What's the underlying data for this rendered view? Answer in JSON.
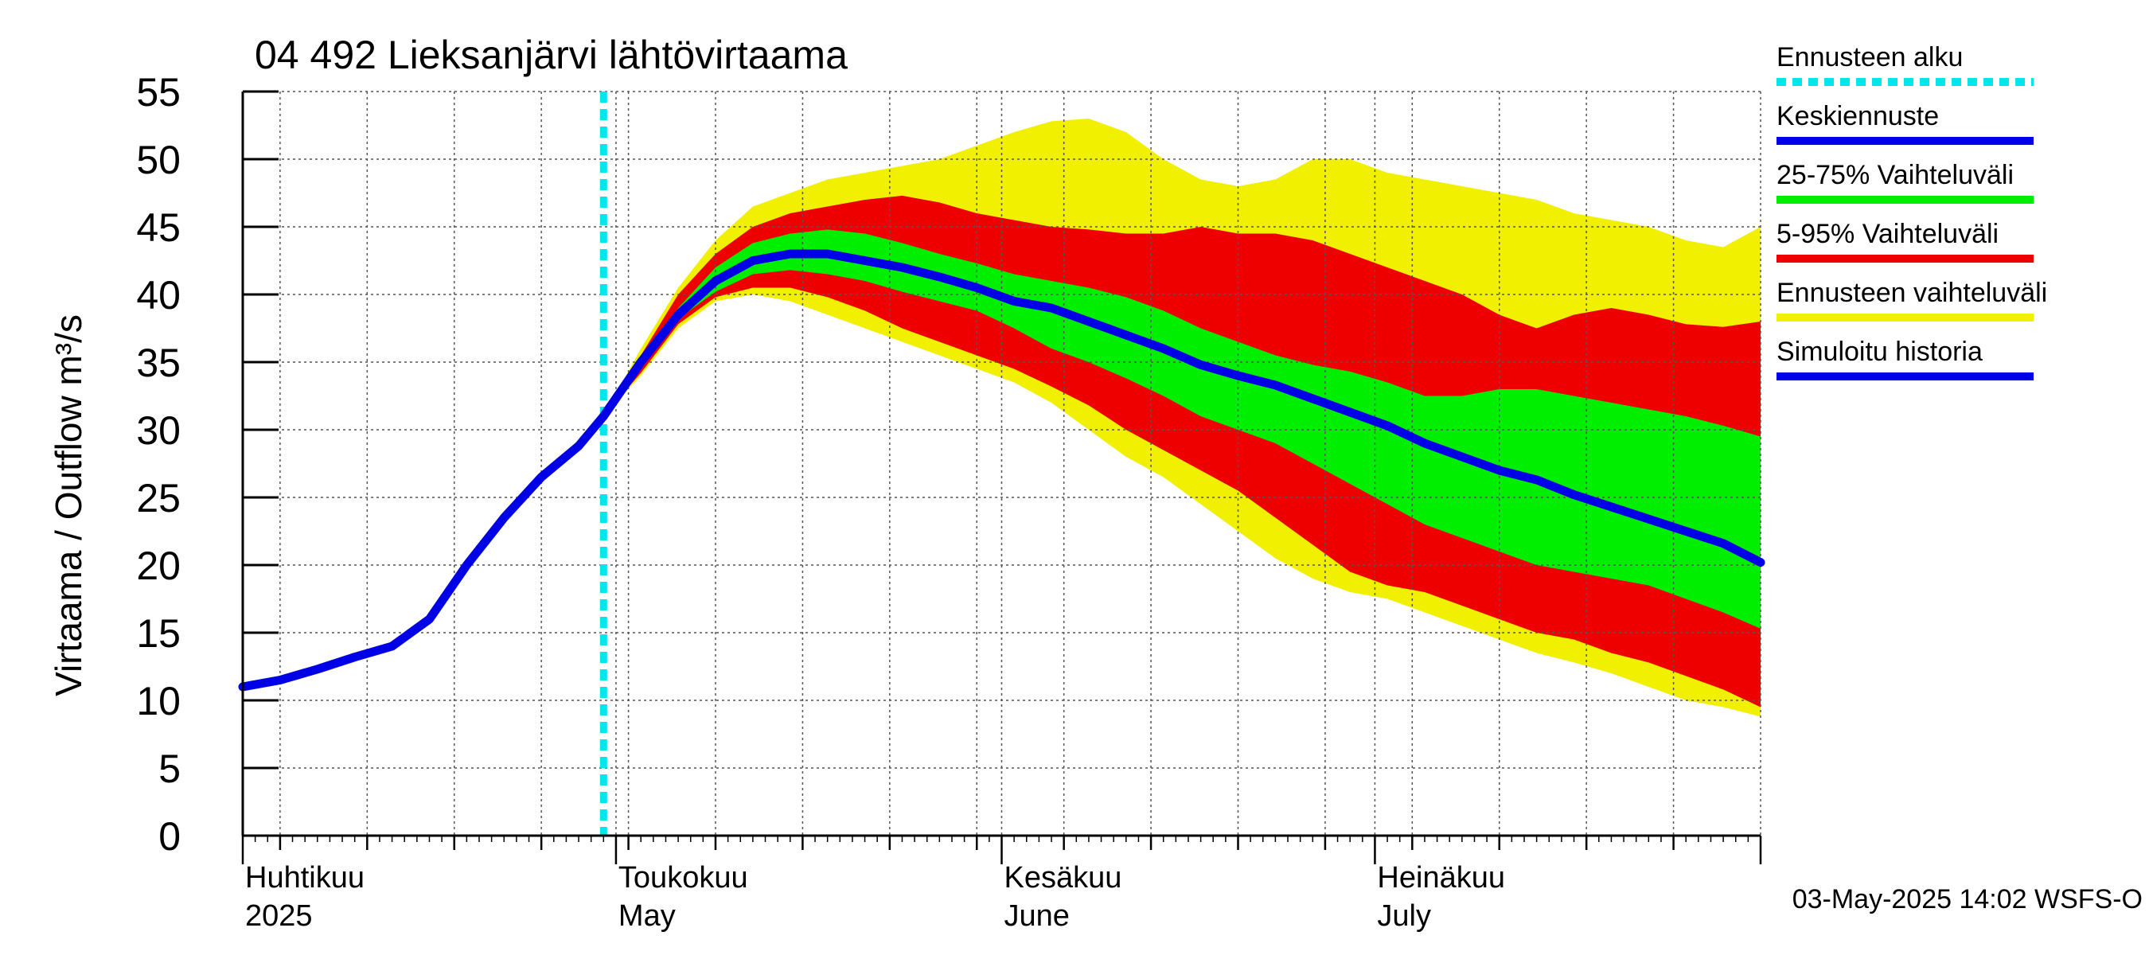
{
  "chart_data": {
    "type": "area",
    "title": "04 492 Lieksanjärvi lähtövirtaama",
    "ylabel": "Virtaama / Outflow    m³/s",
    "ylim": [
      0,
      55
    ],
    "yticks": [
      0,
      5,
      10,
      15,
      20,
      25,
      30,
      35,
      40,
      45,
      50,
      55
    ],
    "xlim": [
      "2025-04-01",
      "2025-08-01"
    ],
    "x_axis_labels": [
      {
        "date": "2025-04-01",
        "line1": "Huhtikuu",
        "line2": "2025"
      },
      {
        "date": "2025-05-01",
        "line1": "Toukokuu",
        "line2": "May"
      },
      {
        "date": "2025-06-01",
        "line1": "Kesäkuu",
        "line2": "June"
      },
      {
        "date": "2025-07-01",
        "line1": "Heinäkuu",
        "line2": "July"
      }
    ],
    "forecast_start": "2025-04-30",
    "footer": "03-May-2025 14:02 WSFS-O",
    "grid": true,
    "legend_position": "right",
    "legend": [
      {
        "key": "forecast_start",
        "label": "Ennusteen alku",
        "color": "#00e5ee",
        "style": "dotted"
      },
      {
        "key": "median",
        "label": "Keskiennuste",
        "color": "#0000e6",
        "style": "solid"
      },
      {
        "key": "p25_75",
        "label": "25-75% Vaihteluväli",
        "color": "#00ee00",
        "style": "solid"
      },
      {
        "key": "p5_95",
        "label": "5-95% Vaihteluväli",
        "color": "#ee0000",
        "style": "solid"
      },
      {
        "key": "range",
        "label": "Ennusteen vaihteluväli",
        "color": "#f0f000",
        "style": "solid"
      },
      {
        "key": "history",
        "label": "Simuloitu historia",
        "color": "#0000e6",
        "style": "solid"
      }
    ],
    "series": [
      {
        "key": "history",
        "color": "#0000e6",
        "x": [
          "2025-04-01",
          "2025-04-04",
          "2025-04-07",
          "2025-04-10",
          "2025-04-13",
          "2025-04-16",
          "2025-04-19",
          "2025-04-22",
          "2025-04-25",
          "2025-04-28",
          "2025-04-30"
        ],
        "values": [
          11.0,
          11.5,
          12.3,
          13.2,
          14.0,
          16.0,
          20.0,
          23.5,
          26.5,
          28.8,
          31.0
        ]
      },
      {
        "key": "median",
        "color": "#0000e6",
        "x": [
          "2025-04-30",
          "2025-05-03",
          "2025-05-06",
          "2025-05-09",
          "2025-05-12",
          "2025-05-15",
          "2025-05-18",
          "2025-05-21",
          "2025-05-24",
          "2025-05-27",
          "2025-05-30",
          "2025-06-02",
          "2025-06-05",
          "2025-06-08",
          "2025-06-11",
          "2025-06-14",
          "2025-06-17",
          "2025-06-20",
          "2025-06-23",
          "2025-06-26",
          "2025-06-29",
          "2025-07-02",
          "2025-07-05",
          "2025-07-08",
          "2025-07-11",
          "2025-07-14",
          "2025-07-17",
          "2025-07-20",
          "2025-07-23",
          "2025-07-26",
          "2025-07-29",
          "2025-08-01"
        ],
        "values": [
          31.0,
          35.0,
          38.5,
          41.0,
          42.5,
          43.0,
          43.0,
          42.5,
          42.0,
          41.3,
          40.5,
          39.5,
          39.0,
          38.0,
          37.0,
          36.0,
          34.8,
          34.0,
          33.3,
          32.3,
          31.3,
          30.3,
          29.0,
          28.0,
          27.0,
          26.3,
          25.2,
          24.3,
          23.4,
          22.5,
          21.6,
          20.2
        ]
      }
    ],
    "bands": [
      {
        "key": "range",
        "color": "#f0f000",
        "x": [
          "2025-04-30",
          "2025-05-03",
          "2025-05-06",
          "2025-05-09",
          "2025-05-12",
          "2025-05-15",
          "2025-05-18",
          "2025-05-21",
          "2025-05-24",
          "2025-05-27",
          "2025-05-30",
          "2025-06-02",
          "2025-06-05",
          "2025-06-08",
          "2025-06-11",
          "2025-06-14",
          "2025-06-17",
          "2025-06-20",
          "2025-06-23",
          "2025-06-26",
          "2025-06-29",
          "2025-07-02",
          "2025-07-05",
          "2025-07-08",
          "2025-07-11",
          "2025-07-14",
          "2025-07-17",
          "2025-07-20",
          "2025-07-23",
          "2025-07-26",
          "2025-07-29",
          "2025-08-01"
        ],
        "upper": [
          31.0,
          36.0,
          40.5,
          44.0,
          46.5,
          47.5,
          48.5,
          49.0,
          49.5,
          50.0,
          51.0,
          52.0,
          52.8,
          53.0,
          52.0,
          50.0,
          48.5,
          48.0,
          48.5,
          50.0,
          50.0,
          49.0,
          48.5,
          48.0,
          47.5,
          47.0,
          46.0,
          45.5,
          45.0,
          44.0,
          43.5,
          45.0
        ],
        "lower": [
          31.0,
          34.0,
          37.5,
          39.5,
          40.0,
          39.5,
          38.5,
          37.5,
          36.5,
          35.5,
          34.5,
          33.5,
          32.0,
          30.0,
          28.0,
          26.5,
          24.5,
          22.5,
          20.5,
          19.0,
          18.0,
          17.5,
          16.5,
          15.5,
          14.5,
          13.5,
          12.8,
          12.0,
          11.0,
          10.0,
          9.5,
          8.8
        ]
      },
      {
        "key": "p5_95",
        "color": "#ee0000",
        "x": [
          "2025-04-30",
          "2025-05-03",
          "2025-05-06",
          "2025-05-09",
          "2025-05-12",
          "2025-05-15",
          "2025-05-18",
          "2025-05-21",
          "2025-05-24",
          "2025-05-27",
          "2025-05-30",
          "2025-06-02",
          "2025-06-05",
          "2025-06-08",
          "2025-06-11",
          "2025-06-14",
          "2025-06-17",
          "2025-06-20",
          "2025-06-23",
          "2025-06-26",
          "2025-06-29",
          "2025-07-02",
          "2025-07-05",
          "2025-07-08",
          "2025-07-11",
          "2025-07-14",
          "2025-07-17",
          "2025-07-20",
          "2025-07-23",
          "2025-07-26",
          "2025-07-29",
          "2025-08-01"
        ],
        "upper": [
          31.0,
          35.5,
          40.0,
          43.0,
          45.0,
          46.0,
          46.5,
          47.0,
          47.3,
          46.8,
          46.0,
          45.5,
          45.0,
          44.8,
          44.5,
          44.5,
          45.0,
          44.5,
          44.5,
          44.0,
          43.0,
          42.0,
          41.0,
          40.0,
          38.5,
          37.5,
          38.5,
          39.0,
          38.5,
          37.8,
          37.6,
          38.0
        ],
        "lower": [
          31.0,
          34.2,
          37.8,
          39.8,
          40.5,
          40.5,
          39.8,
          38.8,
          37.5,
          36.5,
          35.5,
          34.5,
          33.2,
          31.8,
          30.0,
          28.5,
          27.0,
          25.5,
          23.5,
          21.5,
          19.5,
          18.5,
          18.0,
          17.0,
          16.0,
          15.0,
          14.5,
          13.5,
          12.8,
          11.8,
          10.8,
          9.5
        ]
      },
      {
        "key": "p25_75",
        "color": "#00ee00",
        "x": [
          "2025-04-30",
          "2025-05-03",
          "2025-05-06",
          "2025-05-09",
          "2025-05-12",
          "2025-05-15",
          "2025-05-18",
          "2025-05-21",
          "2025-05-24",
          "2025-05-27",
          "2025-05-30",
          "2025-06-02",
          "2025-06-05",
          "2025-06-08",
          "2025-06-11",
          "2025-06-14",
          "2025-06-17",
          "2025-06-20",
          "2025-06-23",
          "2025-06-26",
          "2025-06-29",
          "2025-07-02",
          "2025-07-05",
          "2025-07-08",
          "2025-07-11",
          "2025-07-14",
          "2025-07-17",
          "2025-07-20",
          "2025-07-23",
          "2025-07-26",
          "2025-07-29",
          "2025-08-01"
        ],
        "upper": [
          31.0,
          35.2,
          39.0,
          42.0,
          43.8,
          44.5,
          44.8,
          44.5,
          43.8,
          43.0,
          42.3,
          41.5,
          41.0,
          40.5,
          39.8,
          38.8,
          37.5,
          36.5,
          35.5,
          34.8,
          34.3,
          33.5,
          32.5,
          32.5,
          33.0,
          33.0,
          32.5,
          32.0,
          31.5,
          31.0,
          30.3,
          29.5
        ],
        "lower": [
          31.0,
          34.7,
          38.2,
          40.2,
          41.5,
          41.8,
          41.5,
          41.0,
          40.2,
          39.5,
          38.8,
          37.5,
          36.0,
          35.0,
          33.8,
          32.5,
          31.0,
          30.0,
          29.0,
          27.5,
          26.0,
          24.5,
          23.0,
          22.0,
          21.0,
          20.0,
          19.5,
          19.0,
          18.5,
          17.5,
          16.5,
          15.3
        ]
      }
    ]
  }
}
